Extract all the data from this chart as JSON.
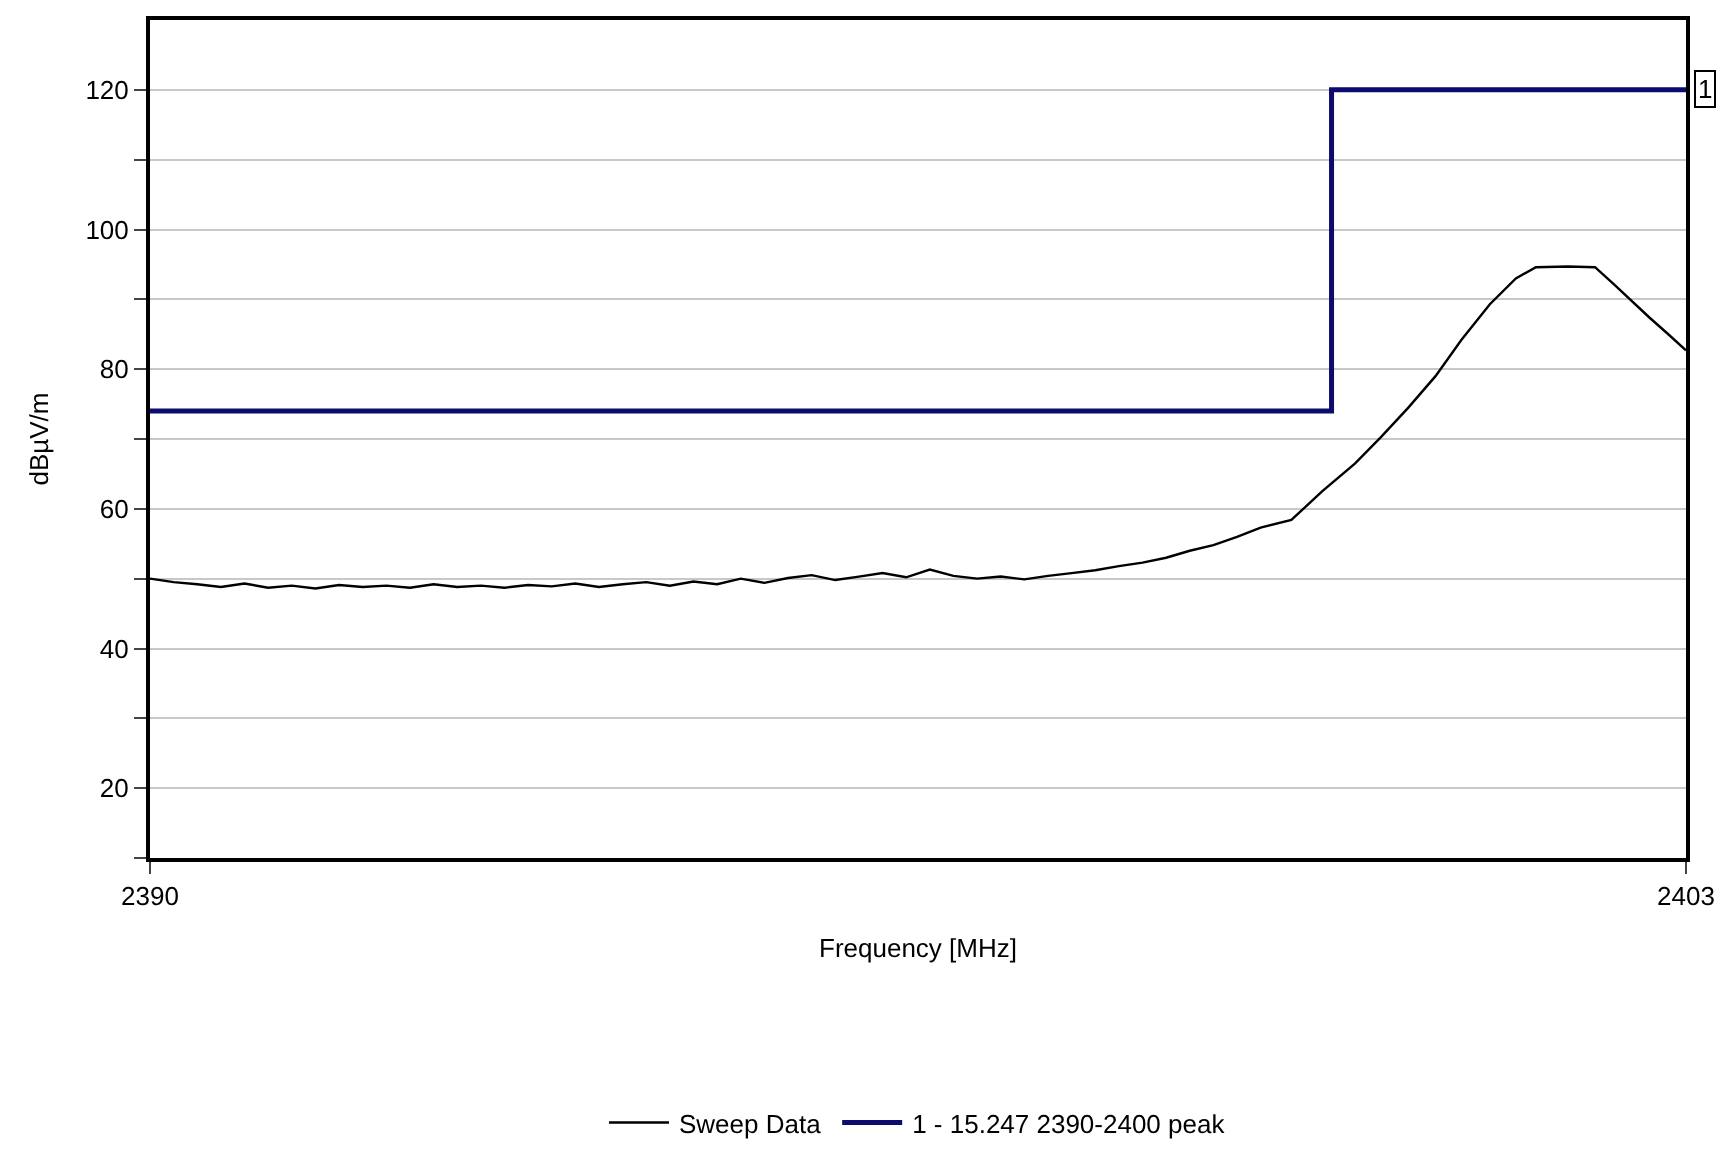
{
  "chart_data": {
    "type": "line",
    "xlabel": "Frequency [MHz]",
    "ylabel": "dBµV/m",
    "xlim": [
      2390,
      2403
    ],
    "xticks": [
      2390,
      2403
    ],
    "ylim": [
      10,
      130
    ],
    "yticks": [
      {
        "value": 10,
        "label": null
      },
      20,
      {
        "value": 30,
        "label": null
      },
      40,
      {
        "value": 50,
        "label": null
      },
      60,
      {
        "value": 70,
        "label": null
      },
      80,
      {
        "value": 90,
        "label": null
      },
      100,
      {
        "value": 110,
        "label": null
      },
      120
    ],
    "grid": "y",
    "legend": "bottom",
    "marker": "none",
    "line_style": "solid",
    "series": [
      {
        "name": "Sweep Data",
        "color": "#000000",
        "x": [
          2390,
          2390.2,
          2390.4,
          2390.6,
          2390.8,
          2391,
          2391.2,
          2391.4,
          2391.6,
          2391.8,
          2392,
          2392.2,
          2392.4,
          2392.6,
          2392.8,
          2393,
          2393.2,
          2393.4,
          2393.6,
          2393.8,
          2394,
          2394.2,
          2394.4,
          2394.6,
          2394.8,
          2395,
          2395.2,
          2395.4,
          2395.6,
          2395.8,
          2396,
          2396.2,
          2396.4,
          2396.6,
          2396.8,
          2397,
          2397.2,
          2397.4,
          2397.6,
          2397.8,
          2398,
          2398.2,
          2398.4,
          2398.6,
          2398.8,
          2399,
          2399.2,
          2399.4,
          2399.66,
          2399.92,
          2400.2,
          2400.42,
          2400.65,
          2400.88,
          2401.1,
          2401.34,
          2401.56,
          2401.73,
          2402,
          2402.23,
          2402.4,
          2402.69,
          2402.85,
          2403
        ],
        "values": [
          50,
          49.5,
          49.2,
          48.8,
          49.3,
          48.7,
          49,
          48.6,
          49.1,
          48.8,
          49,
          48.7,
          49.2,
          48.8,
          49,
          48.7,
          49.1,
          48.9,
          49.3,
          48.8,
          49.2,
          49.5,
          49,
          49.6,
          49.2,
          50,
          49.4,
          50.1,
          50.5,
          49.8,
          50.3,
          50.8,
          50.2,
          51.3,
          50.4,
          50,
          50.3,
          49.9,
          50.4,
          50.8,
          51.2,
          51.8,
          52.3,
          53,
          54,
          54.8,
          56,
          57.3,
          58.4,
          62.5,
          66.5,
          70.3,
          74.5,
          79,
          84.2,
          89.3,
          93,
          94.6,
          94.7,
          94.6,
          92,
          87.4,
          85,
          82.7
        ]
      },
      {
        "name": "1 - 15.247 2390-2400 peak",
        "color": "#0c0c6e",
        "x": [
          2390,
          2400,
          2400,
          2403
        ],
        "values": [
          74,
          74,
          120,
          120
        ]
      }
    ],
    "annotations": [
      {
        "text": "1",
        "x": 2403,
        "y": 120
      }
    ]
  }
}
